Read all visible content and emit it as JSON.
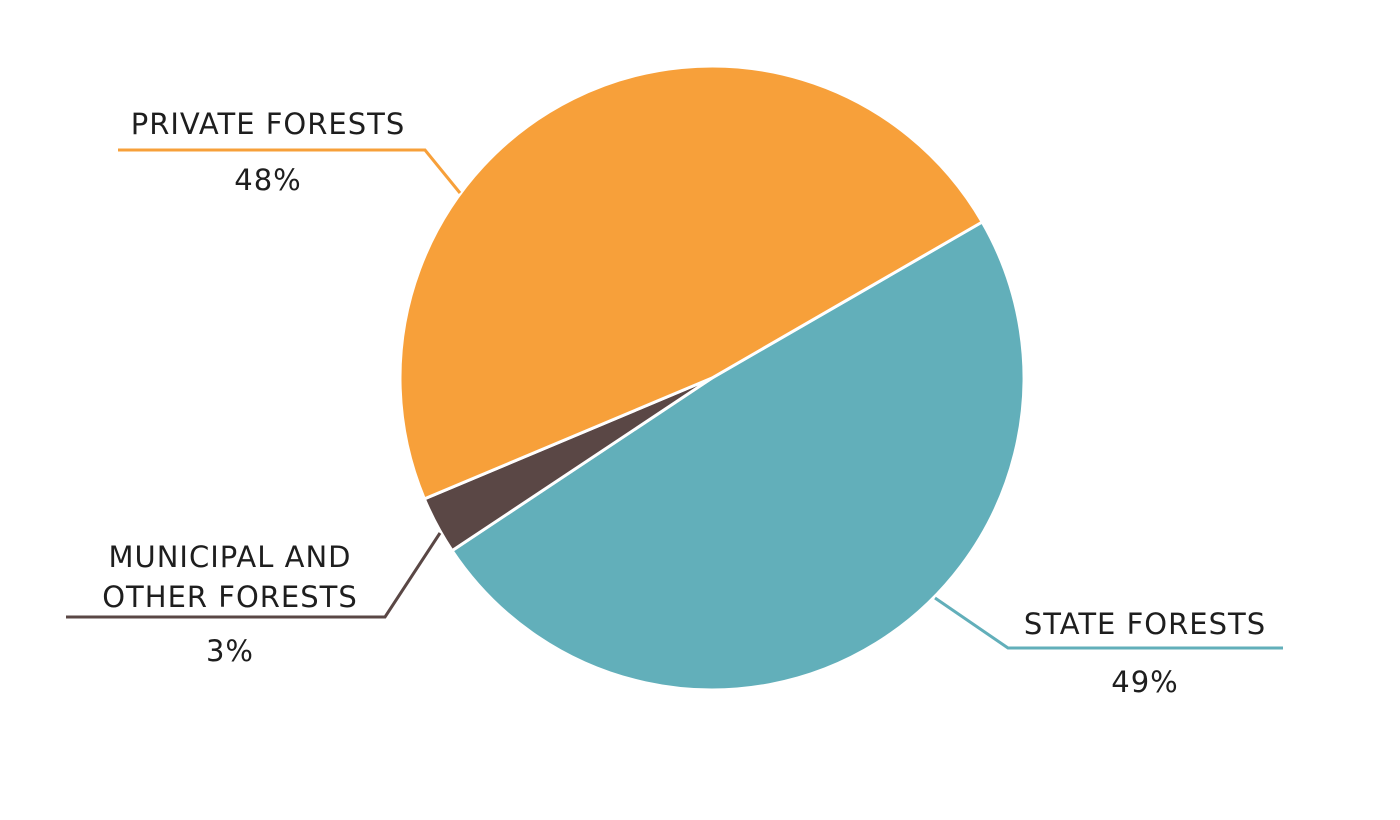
{
  "chart_data": {
    "type": "pie",
    "categories": [
      "STATE FORESTS",
      "MUNICIPAL AND OTHER FORESTS",
      "PRIVATE FORESTS"
    ],
    "values": [
      49,
      3,
      48
    ],
    "value_labels": [
      "49%",
      "3%",
      "48%"
    ],
    "colors": [
      "#62afba",
      "#5a4745",
      "#f7a03a"
    ]
  }
}
